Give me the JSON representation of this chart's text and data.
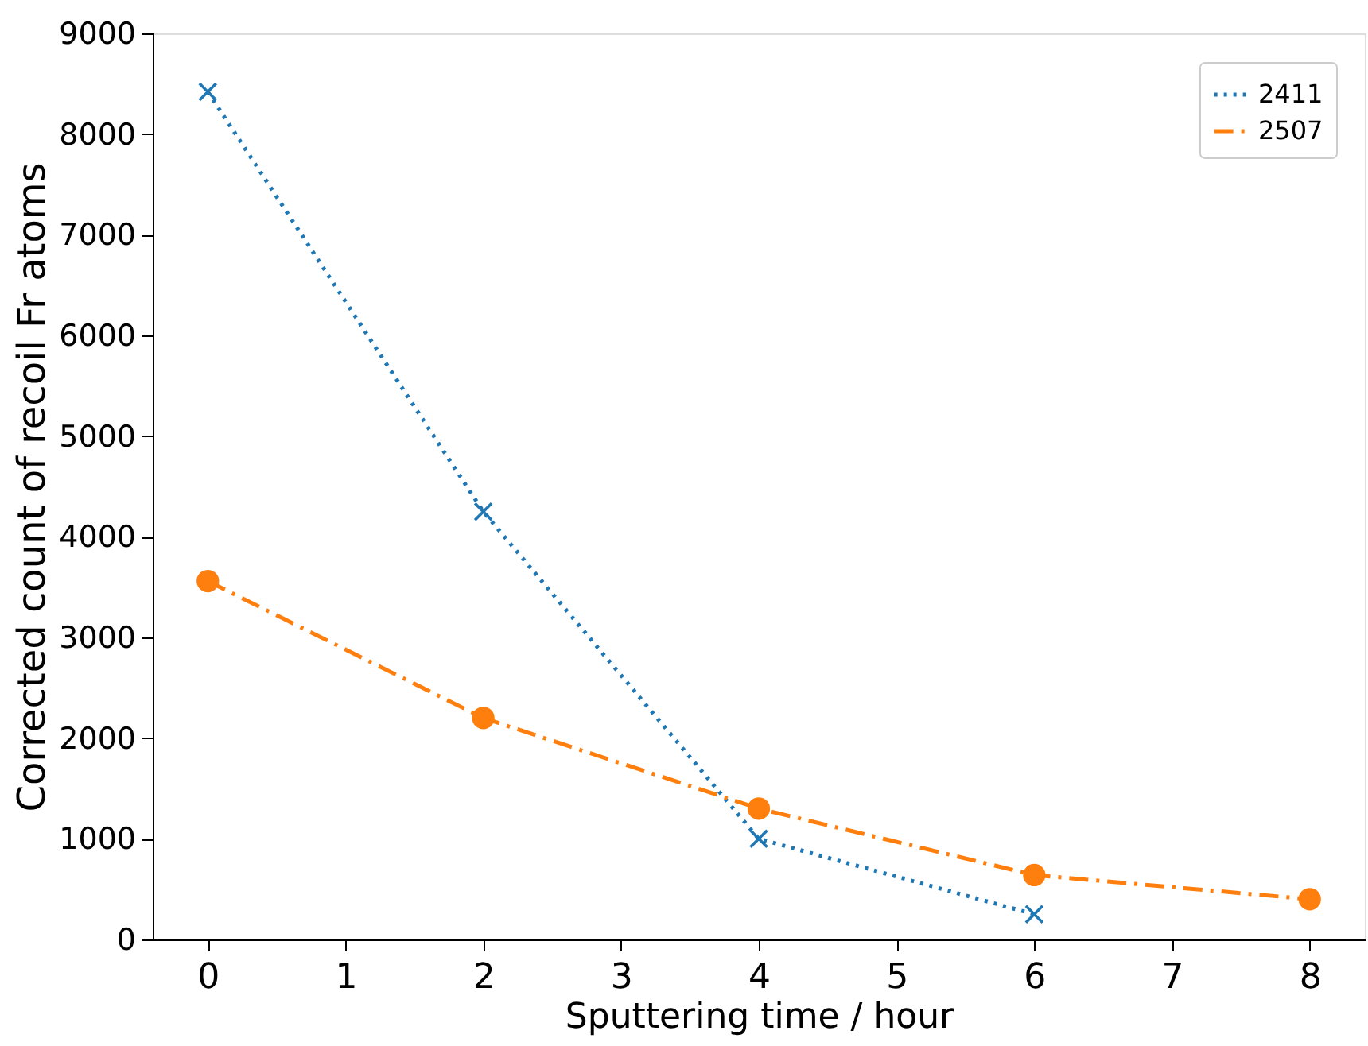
{
  "chart_data": {
    "type": "line",
    "xlabel": "Sputtering time / hour",
    "ylabel": "Corrected count of recoil Fr atoms",
    "xlim": [
      -0.4,
      8.4
    ],
    "xticks": [
      0,
      1,
      2,
      3,
      4,
      5,
      6,
      7,
      8
    ],
    "ylim": [
      0,
      9000
    ],
    "yticks": [
      0,
      1000,
      2000,
      3000,
      4000,
      5000,
      6000,
      7000,
      8000,
      9000
    ],
    "grid": false,
    "legend": "top right",
    "series": [
      {
        "name": "2411",
        "color": "#1f77b4",
        "x": [
          0,
          2,
          4,
          6
        ],
        "values": [
          8420,
          4250,
          1000,
          250
        ],
        "marker": "cross",
        "line_style": "dotted"
      },
      {
        "name": "2507",
        "color": "#ff7f0e",
        "x": [
          0,
          2,
          4,
          6,
          8
        ],
        "values": [
          3560,
          2200,
          1300,
          640,
          400
        ],
        "marker": "circle",
        "line_style": "dashdot"
      }
    ]
  }
}
